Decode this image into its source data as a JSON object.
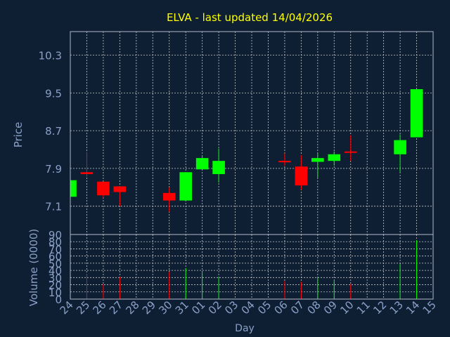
{
  "colors": {
    "background": "#0f1f33",
    "title": "#ffff00",
    "axis_text": "#8aa0c8",
    "frame": "#b0b8c8",
    "grid": "#c8c8c8",
    "up": "#00ff00",
    "down": "#ff0000"
  },
  "chart_data": [
    {
      "type": "candlestick",
      "title": "ELVA - last updated 14/04/2026",
      "ylabel": "Price",
      "xlabel": "Day",
      "grid": true,
      "ylim": [
        6.5,
        10.8
      ],
      "yticks": [
        7.1,
        7.9,
        8.7,
        9.5,
        10.3
      ],
      "ytick_labels": [
        "7.1",
        "7.9",
        "8.7",
        "9.5",
        "10.3"
      ],
      "xtick_labels": [
        "24",
        "25",
        "26",
        "27",
        "28",
        "29",
        "30",
        "31",
        "01",
        "02",
        "03",
        "04",
        "05",
        "06",
        "07",
        "08",
        "09",
        "10",
        "11",
        "12",
        "13",
        "14",
        "15"
      ],
      "candles": [
        {
          "day": "24",
          "open": 7.3,
          "high": 7.65,
          "low": 7.25,
          "close": 7.65
        },
        {
          "day": "25",
          "open": 7.82,
          "high": 8.25,
          "low": 7.72,
          "close": 7.78
        },
        {
          "day": "26",
          "open": 7.62,
          "high": 7.62,
          "low": 7.28,
          "close": 7.33
        },
        {
          "day": "27",
          "open": 7.52,
          "high": 7.52,
          "low": 7.1,
          "close": 7.4
        },
        {
          "day": "30",
          "open": 7.38,
          "high": 7.5,
          "low": 6.98,
          "close": 7.22
        },
        {
          "day": "31",
          "open": 7.22,
          "high": 7.82,
          "low": 7.22,
          "close": 7.82
        },
        {
          "day": "01",
          "open": 7.88,
          "high": 8.18,
          "low": 7.88,
          "close": 8.12
        },
        {
          "day": "02",
          "open": 7.78,
          "high": 8.32,
          "low": 7.6,
          "close": 8.06
        },
        {
          "day": "06",
          "open": 8.06,
          "high": 8.22,
          "low": 7.96,
          "close": 8.04
        },
        {
          "day": "07",
          "open": 7.94,
          "high": 8.18,
          "low": 7.45,
          "close": 7.54
        },
        {
          "day": "08",
          "open": 8.04,
          "high": 8.22,
          "low": 7.7,
          "close": 8.12
        },
        {
          "day": "09",
          "open": 8.06,
          "high": 8.26,
          "low": 7.96,
          "close": 8.2
        },
        {
          "day": "10",
          "open": 8.26,
          "high": 8.6,
          "low": 8.06,
          "close": 8.24
        },
        {
          "day": "13",
          "open": 8.2,
          "high": 8.62,
          "low": 7.82,
          "close": 8.5
        },
        {
          "day": "14",
          "open": 8.56,
          "high": 9.58,
          "low": 8.56,
          "close": 9.58
        }
      ]
    },
    {
      "type": "bar",
      "ylabel": "Volume (0000)",
      "ylim": [
        0,
        90
      ],
      "yticks": [
        0,
        10,
        20,
        30,
        40,
        50,
        60,
        70,
        80,
        90
      ],
      "ytick_labels": [
        "0",
        "10",
        "20",
        "30",
        "40",
        "50",
        "60",
        "70",
        "80",
        "90"
      ],
      "bars": [
        {
          "day": "25",
          "value": 35,
          "direction": "down"
        },
        {
          "day": "26",
          "value": 21,
          "direction": "down"
        },
        {
          "day": "27",
          "value": 31,
          "direction": "down"
        },
        {
          "day": "30",
          "value": 38,
          "direction": "down"
        },
        {
          "day": "31",
          "value": 43,
          "direction": "up"
        },
        {
          "day": "01",
          "value": 37,
          "direction": "up"
        },
        {
          "day": "02",
          "value": 31,
          "direction": "up"
        },
        {
          "day": "06",
          "value": 25,
          "direction": "down"
        },
        {
          "day": "07",
          "value": 24,
          "direction": "down"
        },
        {
          "day": "08",
          "value": 31,
          "direction": "up"
        },
        {
          "day": "09",
          "value": 26,
          "direction": "up"
        },
        {
          "day": "10",
          "value": 21,
          "direction": "down"
        },
        {
          "day": "13",
          "value": 49,
          "direction": "up"
        },
        {
          "day": "14",
          "value": 82,
          "direction": "up"
        }
      ]
    }
  ]
}
